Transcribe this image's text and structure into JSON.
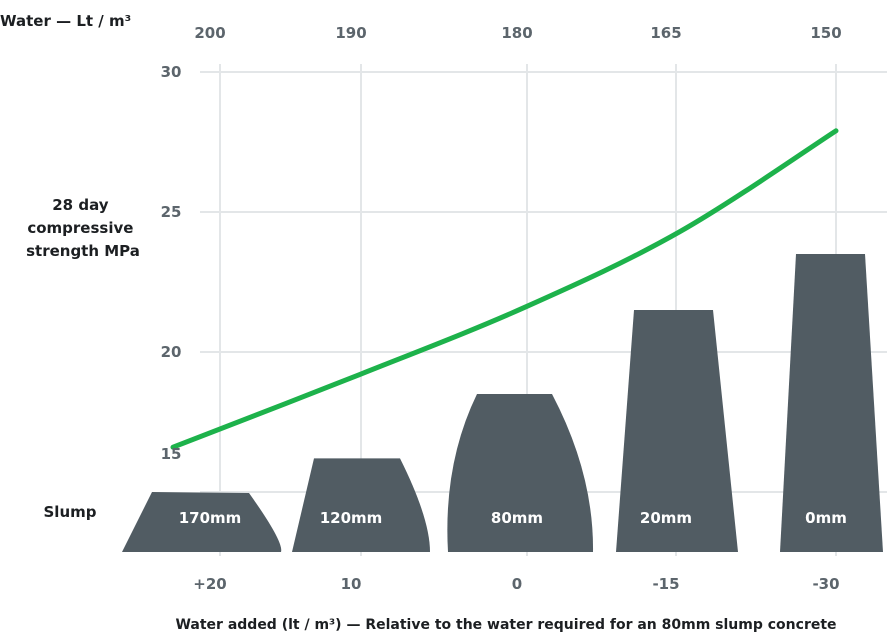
{
  "chart_data": {
    "type": "line",
    "top_axis_label": "Water — Lt / m³",
    "top_ticks": [
      "200",
      "190",
      "180",
      "165",
      "150"
    ],
    "ylabel_lines": [
      "28 day",
      "compressive",
      "strength MPa"
    ],
    "y_ticks": [
      "30",
      "25",
      "20",
      "15"
    ],
    "ylim": [
      15,
      30
    ],
    "slump_label": "Slump",
    "x_categories": [
      "+20",
      "10",
      "0",
      "-15",
      "-30"
    ],
    "xlabel": "Water added (lt / m³) — Relative to the water required for an 80mm slump concrete",
    "series": [
      {
        "values": [
          16.6,
          19.2,
          21.6,
          24.3,
          27.9
        ]
      }
    ],
    "slump_cones": [
      {
        "label": "170mm",
        "strength_top": 15.0
      },
      {
        "label": "120mm",
        "strength_top": 16.2
      },
      {
        "label": "80mm",
        "strength_top": 18.5
      },
      {
        "label": "20mm",
        "strength_top": 21.5
      },
      {
        "label": "0mm",
        "strength_top": 23.5
      }
    ],
    "grid": true,
    "colors": {
      "line": "#1db24b",
      "cone": "#515c63",
      "grid": "#e3e6e8"
    }
  }
}
